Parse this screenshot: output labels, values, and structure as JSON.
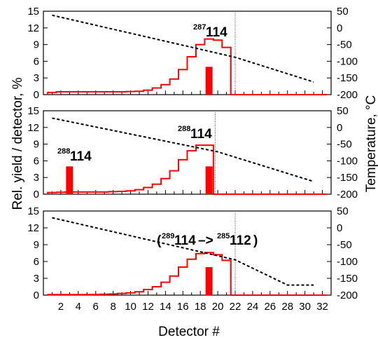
{
  "chart_data": [
    {
      "type": "line",
      "panel": "top",
      "xlim": [
        0,
        33
      ],
      "ylim": [
        0,
        15
      ],
      "y2lim": [
        -200,
        50
      ],
      "yticks": [
        0,
        3,
        6,
        9,
        12,
        15
      ],
      "y2ticks": [
        -200,
        -150,
        -100,
        -50,
        0,
        50
      ],
      "histogram": [
        {
          "x": 1,
          "y": 0.4
        },
        {
          "x": 2,
          "y": 0.5
        },
        {
          "x": 3,
          "y": 0.5
        },
        {
          "x": 4,
          "y": 0.5
        },
        {
          "x": 5,
          "y": 0.5
        },
        {
          "x": 6,
          "y": 0.5
        },
        {
          "x": 7,
          "y": 0.5
        },
        {
          "x": 8,
          "y": 0.5
        },
        {
          "x": 9,
          "y": 0.5
        },
        {
          "x": 10,
          "y": 0.55
        },
        {
          "x": 11,
          "y": 0.6
        },
        {
          "x": 12,
          "y": 0.8
        },
        {
          "x": 13,
          "y": 1.2
        },
        {
          "x": 14,
          "y": 1.8
        },
        {
          "x": 15,
          "y": 2.8
        },
        {
          "x": 16,
          "y": 4.5
        },
        {
          "x": 17,
          "y": 6.8
        },
        {
          "x": 18,
          "y": 9.0
        },
        {
          "x": 19,
          "y": 10.0
        },
        {
          "x": 20,
          "y": 9.8
        },
        {
          "x": 21,
          "y": 8.5
        }
      ],
      "events": [
        {
          "x": 19,
          "y": 5
        }
      ],
      "temperature": [
        {
          "x": 1,
          "t": 38
        },
        {
          "x": 22,
          "t": -88
        },
        {
          "x": 31,
          "t": -162
        }
      ],
      "detector_edge": 22,
      "annotation": {
        "mass": "287",
        "element": "114"
      }
    },
    {
      "type": "line",
      "panel": "middle",
      "xlim": [
        0,
        33
      ],
      "ylim": [
        0,
        15
      ],
      "y2lim": [
        -200,
        50
      ],
      "yticks": [
        0,
        3,
        6,
        9,
        12,
        15
      ],
      "y2ticks": [
        -200,
        -150,
        -100,
        -50,
        0,
        50
      ],
      "histogram": [
        {
          "x": 1,
          "y": 0.3
        },
        {
          "x": 2,
          "y": 0.35
        },
        {
          "x": 3,
          "y": 0.4
        },
        {
          "x": 4,
          "y": 0.4
        },
        {
          "x": 5,
          "y": 0.4
        },
        {
          "x": 6,
          "y": 0.4
        },
        {
          "x": 7,
          "y": 0.4
        },
        {
          "x": 8,
          "y": 0.45
        },
        {
          "x": 9,
          "y": 0.5
        },
        {
          "x": 10,
          "y": 0.6
        },
        {
          "x": 11,
          "y": 0.8
        },
        {
          "x": 12,
          "y": 1.2
        },
        {
          "x": 13,
          "y": 1.8
        },
        {
          "x": 14,
          "y": 2.8
        },
        {
          "x": 15,
          "y": 4.2
        },
        {
          "x": 16,
          "y": 6.2
        },
        {
          "x": 17,
          "y": 7.8
        },
        {
          "x": 18,
          "y": 8.8
        },
        {
          "x": 19,
          "y": 8.8
        }
      ],
      "events": [
        {
          "x": 3,
          "y": 5
        },
        {
          "x": 19,
          "y": 5
        }
      ],
      "temperature": [
        {
          "x": 1,
          "t": 28
        },
        {
          "x": 20,
          "t": -73
        },
        {
          "x": 31,
          "t": -162
        }
      ],
      "detector_edge": 19.7,
      "annotations": [
        {
          "mass": "288",
          "element": "114",
          "near_x": 3
        },
        {
          "mass": "288",
          "element": "114",
          "near_x": 19
        }
      ]
    },
    {
      "type": "line",
      "panel": "bottom",
      "xlim": [
        0,
        33
      ],
      "ylim": [
        0,
        15
      ],
      "y2lim": [
        -200,
        50
      ],
      "xticks": [
        2,
        4,
        6,
        8,
        10,
        12,
        14,
        16,
        18,
        20,
        22,
        24,
        26,
        28,
        30,
        32
      ],
      "yticks": [
        0,
        3,
        6,
        9,
        12,
        15
      ],
      "y2ticks": [
        -200,
        -150,
        -100,
        -50,
        0,
        50
      ],
      "histogram": [
        {
          "x": 1,
          "y": 0.1
        },
        {
          "x": 2,
          "y": 0.1
        },
        {
          "x": 3,
          "y": 0.1
        },
        {
          "x": 4,
          "y": 0.1
        },
        {
          "x": 5,
          "y": 0.1
        },
        {
          "x": 6,
          "y": 0.12
        },
        {
          "x": 7,
          "y": 0.15
        },
        {
          "x": 8,
          "y": 0.2
        },
        {
          "x": 9,
          "y": 0.3
        },
        {
          "x": 10,
          "y": 0.4
        },
        {
          "x": 11,
          "y": 0.6
        },
        {
          "x": 12,
          "y": 1.0
        },
        {
          "x": 13,
          "y": 1.5
        },
        {
          "x": 14,
          "y": 2.3
        },
        {
          "x": 15,
          "y": 3.4
        },
        {
          "x": 16,
          "y": 5.0
        },
        {
          "x": 17,
          "y": 6.4
        },
        {
          "x": 18,
          "y": 7.4
        },
        {
          "x": 19,
          "y": 7.6
        },
        {
          "x": 20,
          "y": 7.2
        },
        {
          "x": 21,
          "y": 6.2
        }
      ],
      "events": [
        {
          "x": 19,
          "y": 5
        }
      ],
      "temperature": [
        {
          "x": 1,
          "t": 30
        },
        {
          "x": 22,
          "t": -95
        },
        {
          "x": 28,
          "t": -170
        },
        {
          "x": 31,
          "t": -170
        }
      ],
      "detector_edge": 22,
      "annotation": {
        "mass1": "289",
        "element1": "114",
        "arrow": "–>",
        "mass2": "285",
        "element2": "112",
        "open": "(",
        "close": ")"
      }
    }
  ],
  "axes": {
    "xlabel": "Detector #",
    "ylabel": "Rel. yield / detector, %",
    "y2label": "Temperature, °C"
  },
  "colors": {
    "histogram": "#ff0000",
    "events": "#ff0000",
    "temperature": "#000000",
    "axes": "#000000",
    "edge_line": "#444444"
  }
}
